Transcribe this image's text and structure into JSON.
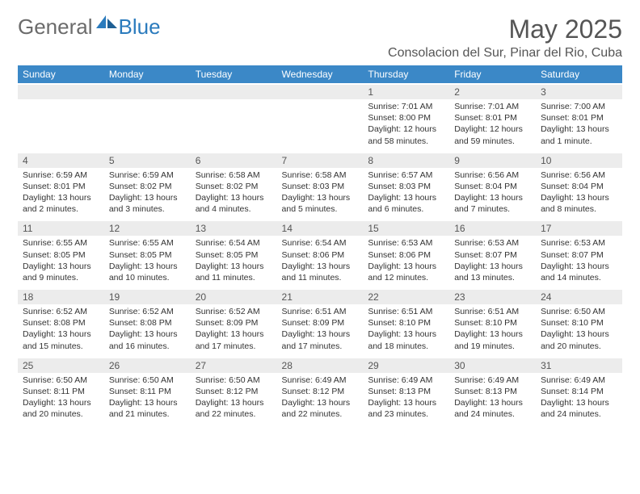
{
  "logo": {
    "part1": "General",
    "part2": "Blue"
  },
  "title": "May 2025",
  "location": "Consolacion del Sur, Pinar del Rio, Cuba",
  "colors": {
    "header_bg": "#3b88c7",
    "header_text": "#ffffff",
    "daynum_bg": "#ececec",
    "body_text": "#333333",
    "title_text": "#555555",
    "logo_gray": "#6b6b6b",
    "logo_blue": "#2b7bbd"
  },
  "typography": {
    "month_title_size": 32,
    "location_size": 16,
    "weekday_size": 12,
    "daynum_size": 12,
    "detail_size": 10.5
  },
  "weekdays": [
    "Sunday",
    "Monday",
    "Tuesday",
    "Wednesday",
    "Thursday",
    "Friday",
    "Saturday"
  ],
  "weeks": [
    {
      "nums": [
        "",
        "",
        "",
        "",
        "1",
        "2",
        "3"
      ],
      "details": [
        null,
        null,
        null,
        null,
        {
          "sr": "Sunrise: 7:01 AM",
          "ss": "Sunset: 8:00 PM",
          "d1": "Daylight: 12 hours",
          "d2": "and 58 minutes."
        },
        {
          "sr": "Sunrise: 7:01 AM",
          "ss": "Sunset: 8:01 PM",
          "d1": "Daylight: 12 hours",
          "d2": "and 59 minutes."
        },
        {
          "sr": "Sunrise: 7:00 AM",
          "ss": "Sunset: 8:01 PM",
          "d1": "Daylight: 13 hours",
          "d2": "and 1 minute."
        }
      ]
    },
    {
      "nums": [
        "4",
        "5",
        "6",
        "7",
        "8",
        "9",
        "10"
      ],
      "details": [
        {
          "sr": "Sunrise: 6:59 AM",
          "ss": "Sunset: 8:01 PM",
          "d1": "Daylight: 13 hours",
          "d2": "and 2 minutes."
        },
        {
          "sr": "Sunrise: 6:59 AM",
          "ss": "Sunset: 8:02 PM",
          "d1": "Daylight: 13 hours",
          "d2": "and 3 minutes."
        },
        {
          "sr": "Sunrise: 6:58 AM",
          "ss": "Sunset: 8:02 PM",
          "d1": "Daylight: 13 hours",
          "d2": "and 4 minutes."
        },
        {
          "sr": "Sunrise: 6:58 AM",
          "ss": "Sunset: 8:03 PM",
          "d1": "Daylight: 13 hours",
          "d2": "and 5 minutes."
        },
        {
          "sr": "Sunrise: 6:57 AM",
          "ss": "Sunset: 8:03 PM",
          "d1": "Daylight: 13 hours",
          "d2": "and 6 minutes."
        },
        {
          "sr": "Sunrise: 6:56 AM",
          "ss": "Sunset: 8:04 PM",
          "d1": "Daylight: 13 hours",
          "d2": "and 7 minutes."
        },
        {
          "sr": "Sunrise: 6:56 AM",
          "ss": "Sunset: 8:04 PM",
          "d1": "Daylight: 13 hours",
          "d2": "and 8 minutes."
        }
      ]
    },
    {
      "nums": [
        "11",
        "12",
        "13",
        "14",
        "15",
        "16",
        "17"
      ],
      "details": [
        {
          "sr": "Sunrise: 6:55 AM",
          "ss": "Sunset: 8:05 PM",
          "d1": "Daylight: 13 hours",
          "d2": "and 9 minutes."
        },
        {
          "sr": "Sunrise: 6:55 AM",
          "ss": "Sunset: 8:05 PM",
          "d1": "Daylight: 13 hours",
          "d2": "and 10 minutes."
        },
        {
          "sr": "Sunrise: 6:54 AM",
          "ss": "Sunset: 8:05 PM",
          "d1": "Daylight: 13 hours",
          "d2": "and 11 minutes."
        },
        {
          "sr": "Sunrise: 6:54 AM",
          "ss": "Sunset: 8:06 PM",
          "d1": "Daylight: 13 hours",
          "d2": "and 11 minutes."
        },
        {
          "sr": "Sunrise: 6:53 AM",
          "ss": "Sunset: 8:06 PM",
          "d1": "Daylight: 13 hours",
          "d2": "and 12 minutes."
        },
        {
          "sr": "Sunrise: 6:53 AM",
          "ss": "Sunset: 8:07 PM",
          "d1": "Daylight: 13 hours",
          "d2": "and 13 minutes."
        },
        {
          "sr": "Sunrise: 6:53 AM",
          "ss": "Sunset: 8:07 PM",
          "d1": "Daylight: 13 hours",
          "d2": "and 14 minutes."
        }
      ]
    },
    {
      "nums": [
        "18",
        "19",
        "20",
        "21",
        "22",
        "23",
        "24"
      ],
      "details": [
        {
          "sr": "Sunrise: 6:52 AM",
          "ss": "Sunset: 8:08 PM",
          "d1": "Daylight: 13 hours",
          "d2": "and 15 minutes."
        },
        {
          "sr": "Sunrise: 6:52 AM",
          "ss": "Sunset: 8:08 PM",
          "d1": "Daylight: 13 hours",
          "d2": "and 16 minutes."
        },
        {
          "sr": "Sunrise: 6:52 AM",
          "ss": "Sunset: 8:09 PM",
          "d1": "Daylight: 13 hours",
          "d2": "and 17 minutes."
        },
        {
          "sr": "Sunrise: 6:51 AM",
          "ss": "Sunset: 8:09 PM",
          "d1": "Daylight: 13 hours",
          "d2": "and 17 minutes."
        },
        {
          "sr": "Sunrise: 6:51 AM",
          "ss": "Sunset: 8:10 PM",
          "d1": "Daylight: 13 hours",
          "d2": "and 18 minutes."
        },
        {
          "sr": "Sunrise: 6:51 AM",
          "ss": "Sunset: 8:10 PM",
          "d1": "Daylight: 13 hours",
          "d2": "and 19 minutes."
        },
        {
          "sr": "Sunrise: 6:50 AM",
          "ss": "Sunset: 8:10 PM",
          "d1": "Daylight: 13 hours",
          "d2": "and 20 minutes."
        }
      ]
    },
    {
      "nums": [
        "25",
        "26",
        "27",
        "28",
        "29",
        "30",
        "31"
      ],
      "details": [
        {
          "sr": "Sunrise: 6:50 AM",
          "ss": "Sunset: 8:11 PM",
          "d1": "Daylight: 13 hours",
          "d2": "and 20 minutes."
        },
        {
          "sr": "Sunrise: 6:50 AM",
          "ss": "Sunset: 8:11 PM",
          "d1": "Daylight: 13 hours",
          "d2": "and 21 minutes."
        },
        {
          "sr": "Sunrise: 6:50 AM",
          "ss": "Sunset: 8:12 PM",
          "d1": "Daylight: 13 hours",
          "d2": "and 22 minutes."
        },
        {
          "sr": "Sunrise: 6:49 AM",
          "ss": "Sunset: 8:12 PM",
          "d1": "Daylight: 13 hours",
          "d2": "and 22 minutes."
        },
        {
          "sr": "Sunrise: 6:49 AM",
          "ss": "Sunset: 8:13 PM",
          "d1": "Daylight: 13 hours",
          "d2": "and 23 minutes."
        },
        {
          "sr": "Sunrise: 6:49 AM",
          "ss": "Sunset: 8:13 PM",
          "d1": "Daylight: 13 hours",
          "d2": "and 24 minutes."
        },
        {
          "sr": "Sunrise: 6:49 AM",
          "ss": "Sunset: 8:14 PM",
          "d1": "Daylight: 13 hours",
          "d2": "and 24 minutes."
        }
      ]
    }
  ]
}
